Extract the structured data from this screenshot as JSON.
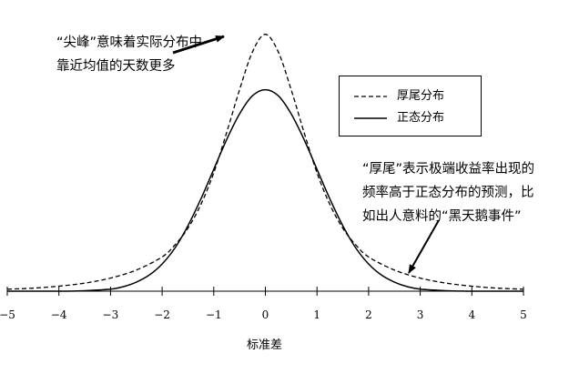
{
  "chart_data": {
    "type": "line",
    "title": "",
    "xlabel": "标准差",
    "ylabel": "",
    "xlim": [
      -5,
      5
    ],
    "ylim": [
      0,
      0.56
    ],
    "x_ticks": [
      "−5",
      "−4",
      "−3",
      "−2",
      "−1",
      "0",
      "1",
      "2",
      "3",
      "4",
      "5"
    ],
    "grid": false,
    "legend_position": "right",
    "series": [
      {
        "name": "厚尾分布",
        "style": "dashed",
        "x": [
          -5,
          -4.5,
          -4,
          -3.5,
          -3,
          -2.5,
          -2,
          -1.75,
          -1.5,
          -1.25,
          -1,
          -0.75,
          -0.5,
          -0.25,
          0,
          0.25,
          0.5,
          0.75,
          1,
          1.25,
          1.5,
          1.75,
          2,
          2.5,
          3,
          3.5,
          4,
          4.5,
          5
        ],
        "y": [
          0.004,
          0.006,
          0.01,
          0.016,
          0.026,
          0.042,
          0.068,
          0.092,
          0.125,
          0.172,
          0.235,
          0.315,
          0.4,
          0.475,
          0.51,
          0.475,
          0.4,
          0.315,
          0.235,
          0.172,
          0.125,
          0.092,
          0.068,
          0.042,
          0.026,
          0.016,
          0.01,
          0.006,
          0.004
        ]
      },
      {
        "name": "正态分布",
        "style": "solid",
        "x": [
          -5,
          -4.5,
          -4,
          -3.5,
          -3,
          -2.75,
          -2.5,
          -2.25,
          -2,
          -1.75,
          -1.5,
          -1.25,
          -1,
          -0.75,
          -0.5,
          -0.25,
          0,
          0.25,
          0.5,
          0.75,
          1,
          1.25,
          1.5,
          1.75,
          2,
          2.25,
          2.5,
          2.75,
          3,
          3.5,
          4,
          4.5,
          5
        ],
        "y": [
          0.0,
          0.0,
          0.0,
          0.001,
          0.004,
          0.009,
          0.018,
          0.032,
          0.054,
          0.086,
          0.13,
          0.183,
          0.242,
          0.301,
          0.352,
          0.388,
          0.4,
          0.388,
          0.352,
          0.301,
          0.242,
          0.183,
          0.13,
          0.086,
          0.054,
          0.032,
          0.018,
          0.009,
          0.004,
          0.001,
          0.0,
          0.0,
          0.0
        ]
      }
    ],
    "annotations": [
      {
        "lines": [
          "“尖峰”意味着实际分布中",
          "靠近均值的天数更多"
        ]
      },
      {
        "lines": [
          "“厚尾”表示极端收益率出现的",
          "频率高于正态分布的预测，比",
          "如出人意料的“黑天鹅事件”"
        ]
      }
    ]
  }
}
